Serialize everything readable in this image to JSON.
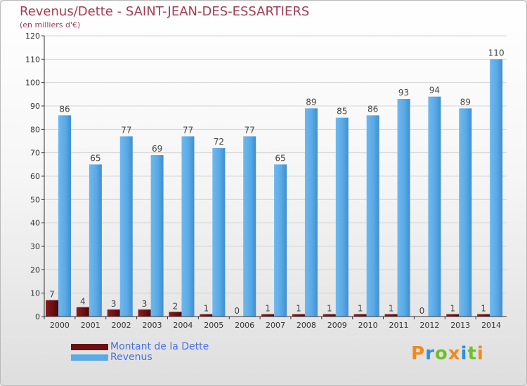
{
  "header": {
    "title": "Revenus/Dette - SAINT-JEAN-DES-ESSARTIERS",
    "subtitle": "(en milliers d'€)"
  },
  "legend": {
    "items": [
      {
        "label": "Montant de la Dette",
        "color": "#6a0f12"
      },
      {
        "label": "Revenus",
        "color": "#5aaae6"
      }
    ]
  },
  "logo": {
    "text": "Proxiti"
  },
  "colors": {
    "debt_bar": "#6a0f12",
    "revenue_bar": "#5aaae6",
    "grid": "#d4d4d4",
    "axis": "#333333",
    "title": "#a33b55",
    "legend_text": "#4a6ee0"
  },
  "chart_data": {
    "type": "bar",
    "title": "Revenus/Dette - SAINT-JEAN-DES-ESSARTIERS",
    "subtitle": "(en milliers d'€)",
    "categories": [
      "2000",
      "2001",
      "2002",
      "2003",
      "2004",
      "2005",
      "2006",
      "2007",
      "2008",
      "2009",
      "2010",
      "2011",
      "2012",
      "2013",
      "2014"
    ],
    "series": [
      {
        "name": "Montant de la Dette",
        "values": [
          7,
          4,
          3,
          3,
          2,
          1,
          0,
          1,
          1,
          1,
          1,
          1,
          0,
          1,
          1
        ]
      },
      {
        "name": "Revenus",
        "values": [
          86,
          65,
          77,
          69,
          77,
          72,
          77,
          65,
          89,
          85,
          86,
          93,
          94,
          89,
          110
        ]
      }
    ],
    "ylim": [
      0,
      120
    ],
    "yticks": [
      0,
      10,
      20,
      30,
      40,
      50,
      60,
      70,
      80,
      90,
      100,
      110,
      120
    ],
    "grid": true,
    "legend_position": "bottom-left"
  }
}
